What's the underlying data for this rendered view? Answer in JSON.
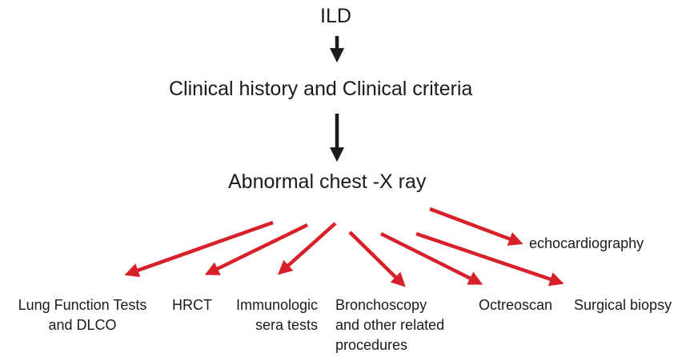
{
  "nodes": {
    "root": "ILD",
    "level1": "Clinical history and Clinical criteria",
    "level2": "Abnormal chest -X ray"
  },
  "leaves": {
    "echo": "echocardiography",
    "lung_function": [
      "Lung Function Tests",
      "and DLCO"
    ],
    "hrct": "HRCT",
    "immunologic": [
      "Immunologic",
      "sera tests"
    ],
    "bronchoscopy": [
      "Bronchoscopy",
      "and other related",
      "procedures"
    ],
    "octreoscan": "Octreoscan",
    "surgical_biopsy": "Surgical biopsy"
  },
  "colors": {
    "text": "#1a1a1a",
    "black_arrow": "#1a1a1a",
    "red_arrow": "#d7202a"
  }
}
